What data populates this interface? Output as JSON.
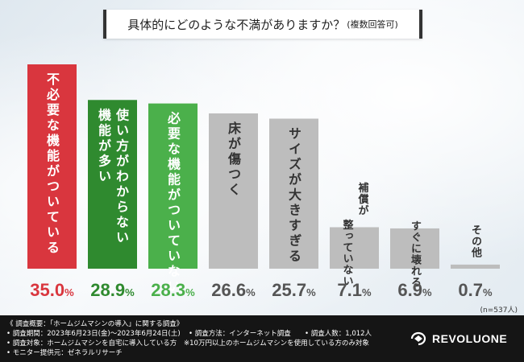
{
  "title": {
    "main": "具体的にどのような不満がありますか？",
    "sub": "(複数回答可)"
  },
  "sample_note": "(n=537人)",
  "chart_data": {
    "type": "bar",
    "title": "具体的にどのような不満がありますか？(複数回答可)",
    "categories": [
      "不必要な機能がついている",
      "使い方がわからない機能が多い",
      "必要な機能がついていない",
      "床が傷つく",
      "サイズが大きすぎる",
      "補償が整っていない",
      "すぐに壊れる",
      "その他"
    ],
    "values": [
      35.0,
      28.9,
      28.3,
      26.6,
      25.7,
      7.1,
      6.9,
      0.7
    ],
    "value_labels": [
      "35.0",
      "28.9",
      "28.3",
      "26.6",
      "25.7",
      "7.1",
      "6.9",
      "0.7"
    ],
    "unit": "%",
    "bar_colors": [
      "#d9363e",
      "#2f8a2f",
      "#4bb04b",
      "#bdbdbd",
      "#bdbdbd",
      "#bdbdbd",
      "#bdbdbd",
      "#bdbdbd"
    ],
    "label_colors": [
      "#d9363e",
      "#2f8a2f",
      "#4bb04b",
      "#555555",
      "#555555",
      "#555555",
      "#555555",
      "#555555"
    ],
    "ylim": [
      0,
      35
    ]
  },
  "footer": {
    "line1": "《 調査概要：「ホームジムマシンの導入」に関する調査》",
    "period": "• 調査期間：2023年6月23日(金)～2023年6月24日(土)",
    "method": "• 調査方法：インターネット調査",
    "count": "• 調査人数：1,012人",
    "target": "• 調査対象：ホームジムマシンを自宅に導入している方",
    "target_note": "※10万円以上のホームジムマシンを使用している方のみ対象",
    "provider": "• モニター提供元：ゼネラルリサーチ",
    "logo_text": "REVOLUONE"
  }
}
